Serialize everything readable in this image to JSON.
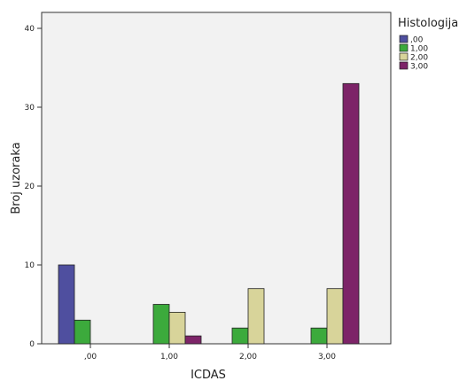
{
  "chart_data": {
    "type": "bar",
    "title": "",
    "xlabel": "ICDAS",
    "ylabel": "Broj uzoraka",
    "categories": [
      ",00",
      "1,00",
      "2,00",
      "3,00"
    ],
    "ylim": [
      0,
      42
    ],
    "yticks": [
      0,
      10,
      20,
      30,
      40
    ],
    "grid": false,
    "legend_title": "Histologija",
    "legend_position": "top-right, outside",
    "series": [
      {
        "name": ",00",
        "color": "#4f4f9f",
        "values": [
          10,
          0,
          0,
          0
        ]
      },
      {
        "name": "1,00",
        "color": "#3caa3c",
        "values": [
          3,
          5,
          2,
          2
        ]
      },
      {
        "name": "2,00",
        "color": "#d8d49a",
        "values": [
          0,
          4,
          7,
          7
        ]
      },
      {
        "name": "3,00",
        "color": "#7d2468",
        "values": [
          0,
          1,
          0,
          33
        ]
      }
    ]
  }
}
